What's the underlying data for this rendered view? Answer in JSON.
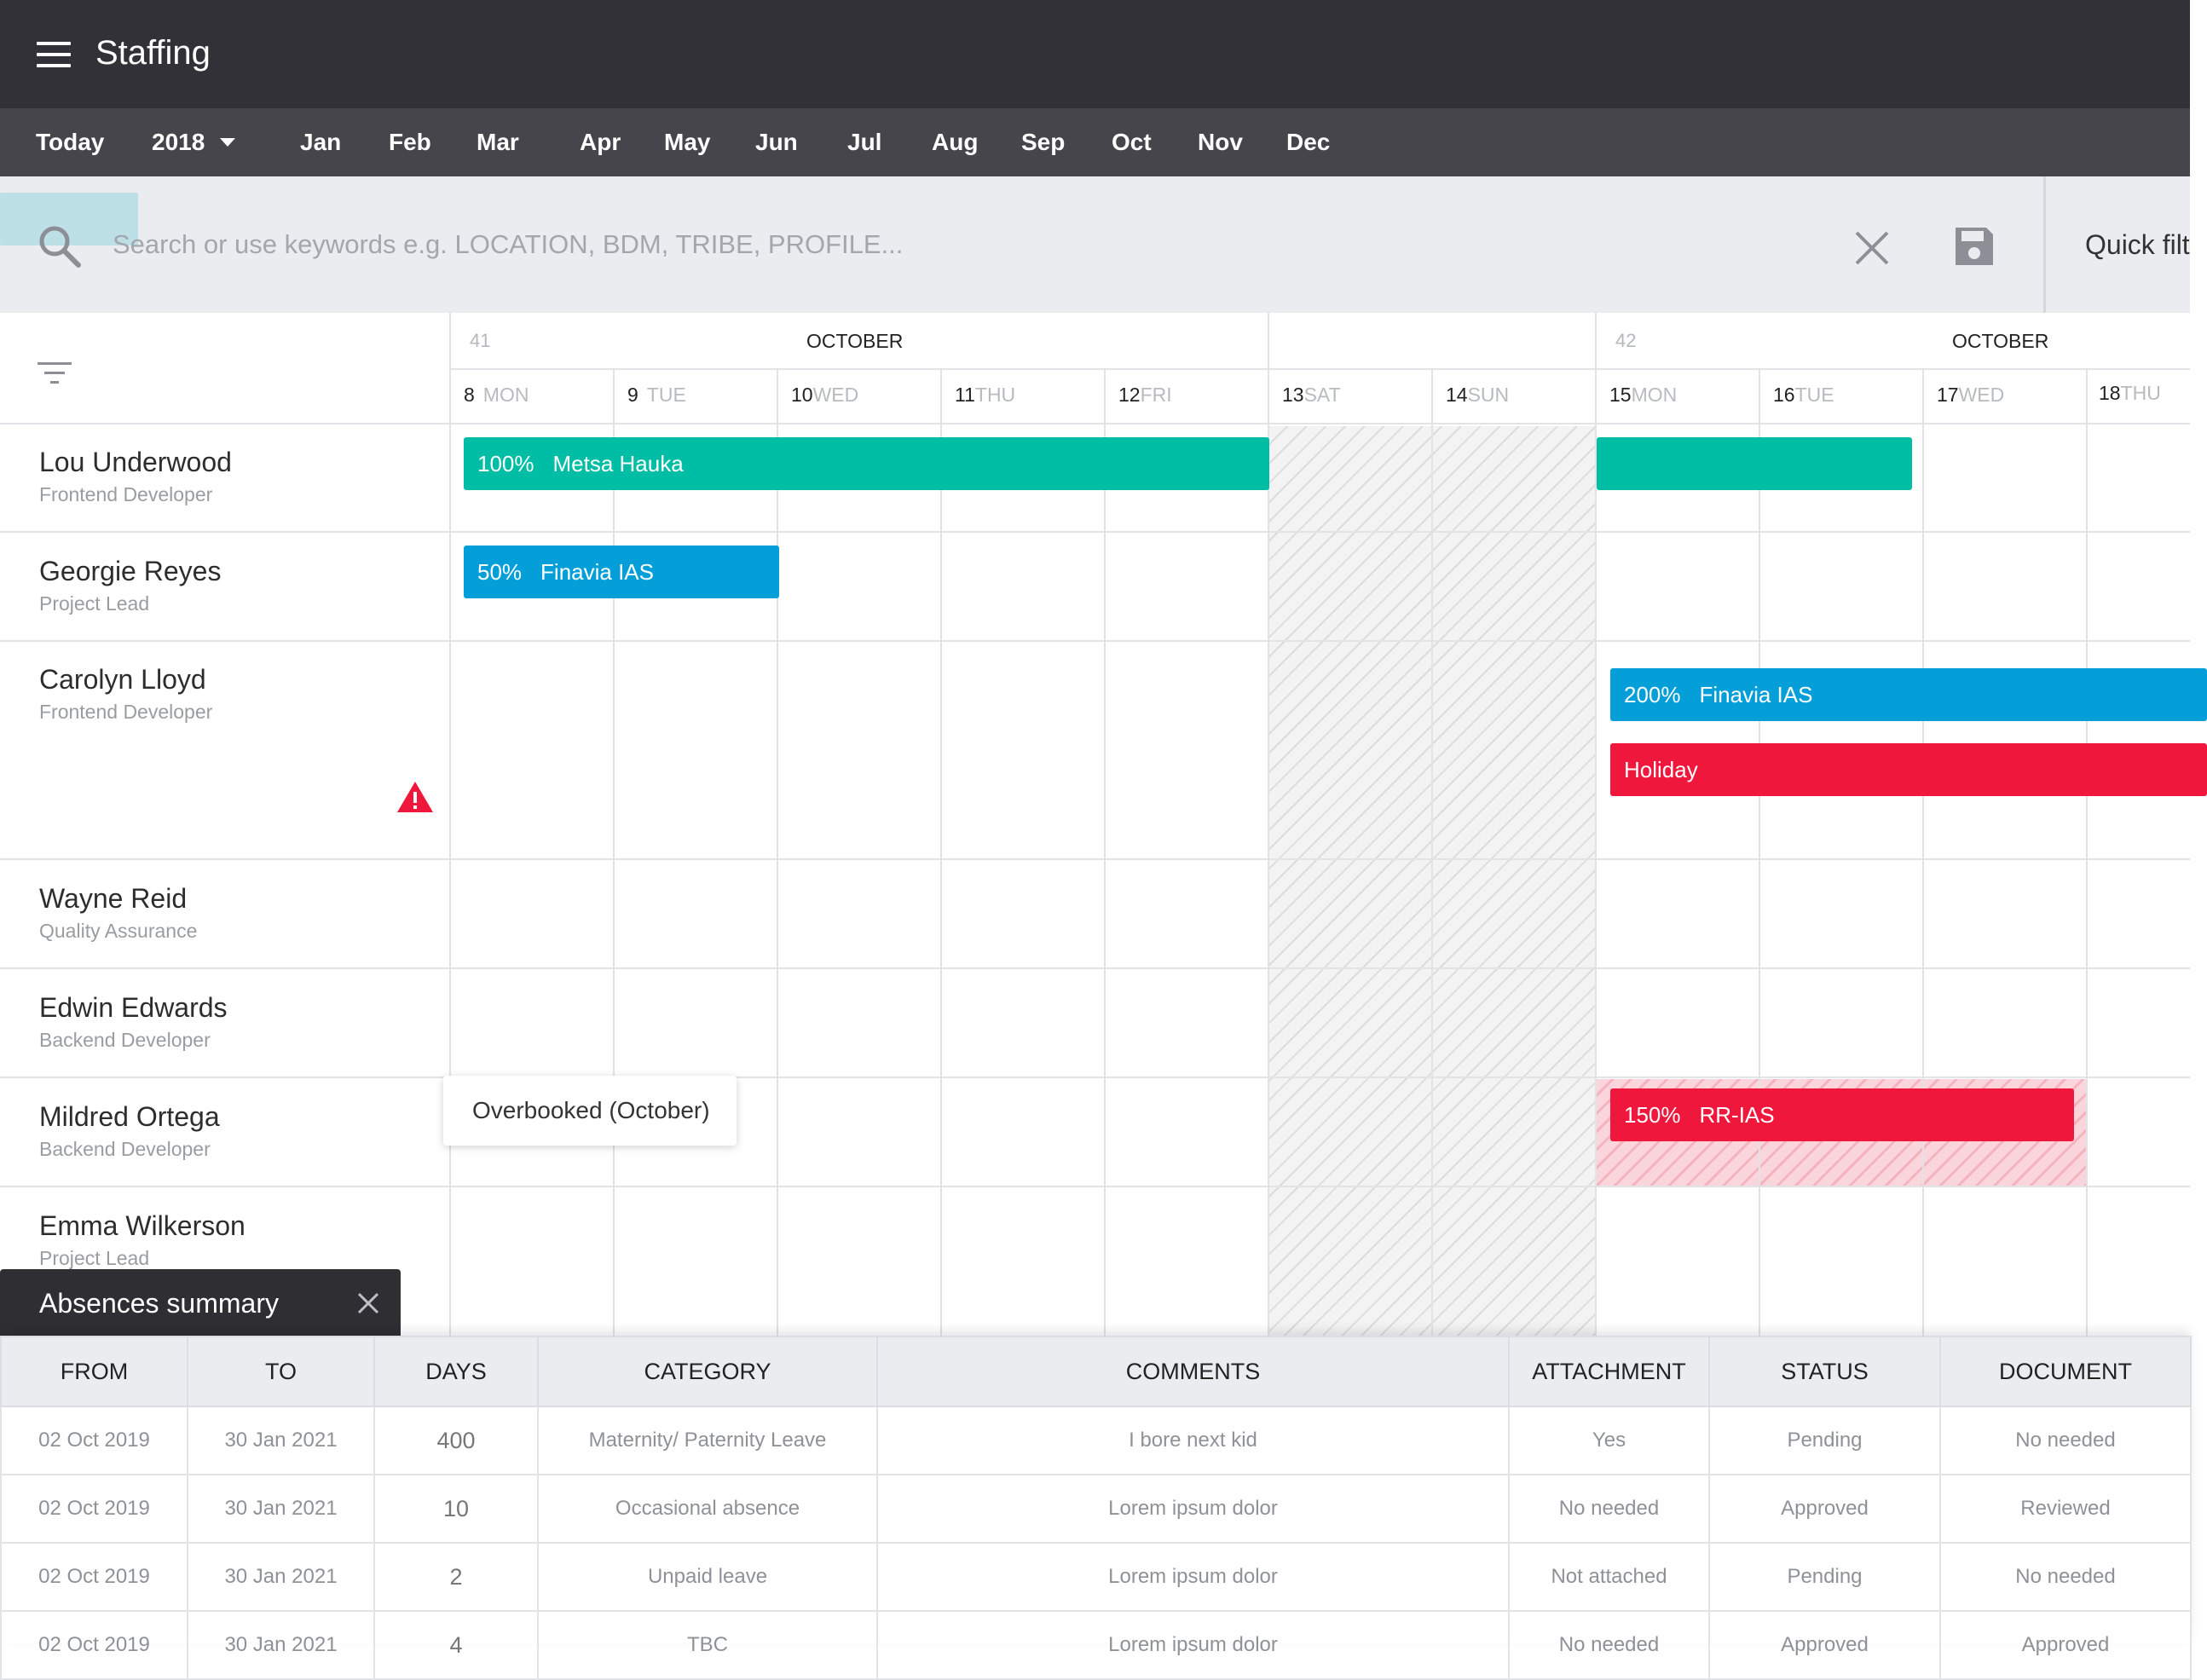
{
  "app": {
    "title": "Staffing"
  },
  "monthbar": {
    "today": "Today",
    "year": "2018",
    "months": [
      "Jan",
      "Feb",
      "Mar",
      "Apr",
      "May",
      "Jun",
      "Jul",
      "Aug",
      "Sep",
      "Oct",
      "Nov",
      "Dec"
    ]
  },
  "search": {
    "placeholder": "Search or use keywords e.g. LOCATION, BDM, TRIBE, PROFILE...",
    "value": "",
    "quick_filter": "Quick filt"
  },
  "calendar": {
    "weeks": [
      {
        "number": "41",
        "month": "OCTOBER"
      },
      {
        "number": "42",
        "month": "OCTOBER"
      }
    ],
    "days": [
      {
        "num": "8",
        "wd": "MON"
      },
      {
        "num": "9",
        "wd": "TUE"
      },
      {
        "num": "10",
        "wd": "WED"
      },
      {
        "num": "11",
        "wd": "THU"
      },
      {
        "num": "12",
        "wd": "FRI"
      },
      {
        "num": "13",
        "wd": "SAT"
      },
      {
        "num": "14",
        "wd": "SUN"
      },
      {
        "num": "15",
        "wd": "MON"
      },
      {
        "num": "16",
        "wd": "TUE"
      },
      {
        "num": "17",
        "wd": "WED"
      },
      {
        "num": "18",
        "wd": "THU"
      }
    ]
  },
  "people": [
    {
      "name": "Lou Underwood",
      "role": "Frontend Developer"
    },
    {
      "name": "Georgie Reyes",
      "role": "Project Lead"
    },
    {
      "name": "Carolyn Lloyd",
      "role": "Frontend Developer"
    },
    {
      "name": "Wayne Reid",
      "role": "Quality Assurance"
    },
    {
      "name": "Edwin Edwards",
      "role": "Backend Developer"
    },
    {
      "name": "Mildred Ortega",
      "role": "Backend Developer"
    },
    {
      "name": "Emma Wilkerson",
      "role": "Project Lead"
    }
  ],
  "bookings": [
    {
      "pct": "100%",
      "project": "Metsa Hauka",
      "color": "#00bda5"
    },
    {
      "pct": "",
      "project": "",
      "color": "#00bda5"
    },
    {
      "pct": "50%",
      "project": "Finavia IAS",
      "color": "#049fd9"
    },
    {
      "pct": "200%",
      "project": "Finavia IAS",
      "color": "#049fd9"
    },
    {
      "pct": "",
      "project": "Holiday",
      "color": "#f0173d"
    },
    {
      "pct": "150%",
      "project": "RR-IAS",
      "color": "#f0173d"
    }
  ],
  "tooltip": {
    "text": "Overbooked (October)"
  },
  "absences": {
    "title": "Absences summary",
    "columns": [
      "FROM",
      "TO",
      "DAYS",
      "CATEGORY",
      "COMMENTS",
      "ATTACHMENT",
      "STATUS",
      "DOCUMENT"
    ],
    "rows": [
      [
        "02 Oct 2019",
        "30 Jan 2021",
        "400",
        "Maternity/ Paternity Leave",
        "I bore next kid",
        "Yes",
        "Pending",
        "No needed"
      ],
      [
        "02 Oct 2019",
        "30 Jan 2021",
        "10",
        "Occasional absence",
        "Lorem ipsum dolor",
        "No needed",
        "Approved",
        "Reviewed"
      ],
      [
        "02 Oct 2019",
        "30 Jan 2021",
        "2",
        "Unpaid leave",
        "Lorem ipsum dolor",
        "Not attached",
        "Pending",
        "No needed"
      ],
      [
        "02 Oct 2019",
        "30 Jan 2021",
        "4",
        "TBC",
        "Lorem ipsum dolor",
        "No needed",
        "Approved",
        "Approved"
      ]
    ]
  }
}
